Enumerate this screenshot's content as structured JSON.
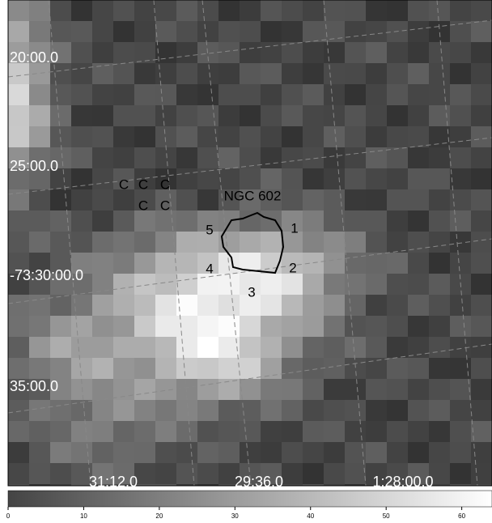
{
  "axis_labels": {
    "dec": [
      "20:00.0",
      "25:00.0",
      "-73:30:00.0",
      "35:00.0"
    ],
    "ra": [
      "31:12.0",
      "29:36.0",
      "1:28:00.0"
    ]
  },
  "annotations": {
    "markers": [
      "C",
      "C",
      "C",
      "C",
      "C"
    ],
    "object": "NGC 602",
    "regions": [
      "1",
      "2",
      "3",
      "4",
      "5"
    ]
  },
  "colorbar": {
    "lim": [
      0,
      64
    ],
    "ticks": [
      0,
      10,
      20,
      30,
      40,
      50,
      60
    ]
  }
}
